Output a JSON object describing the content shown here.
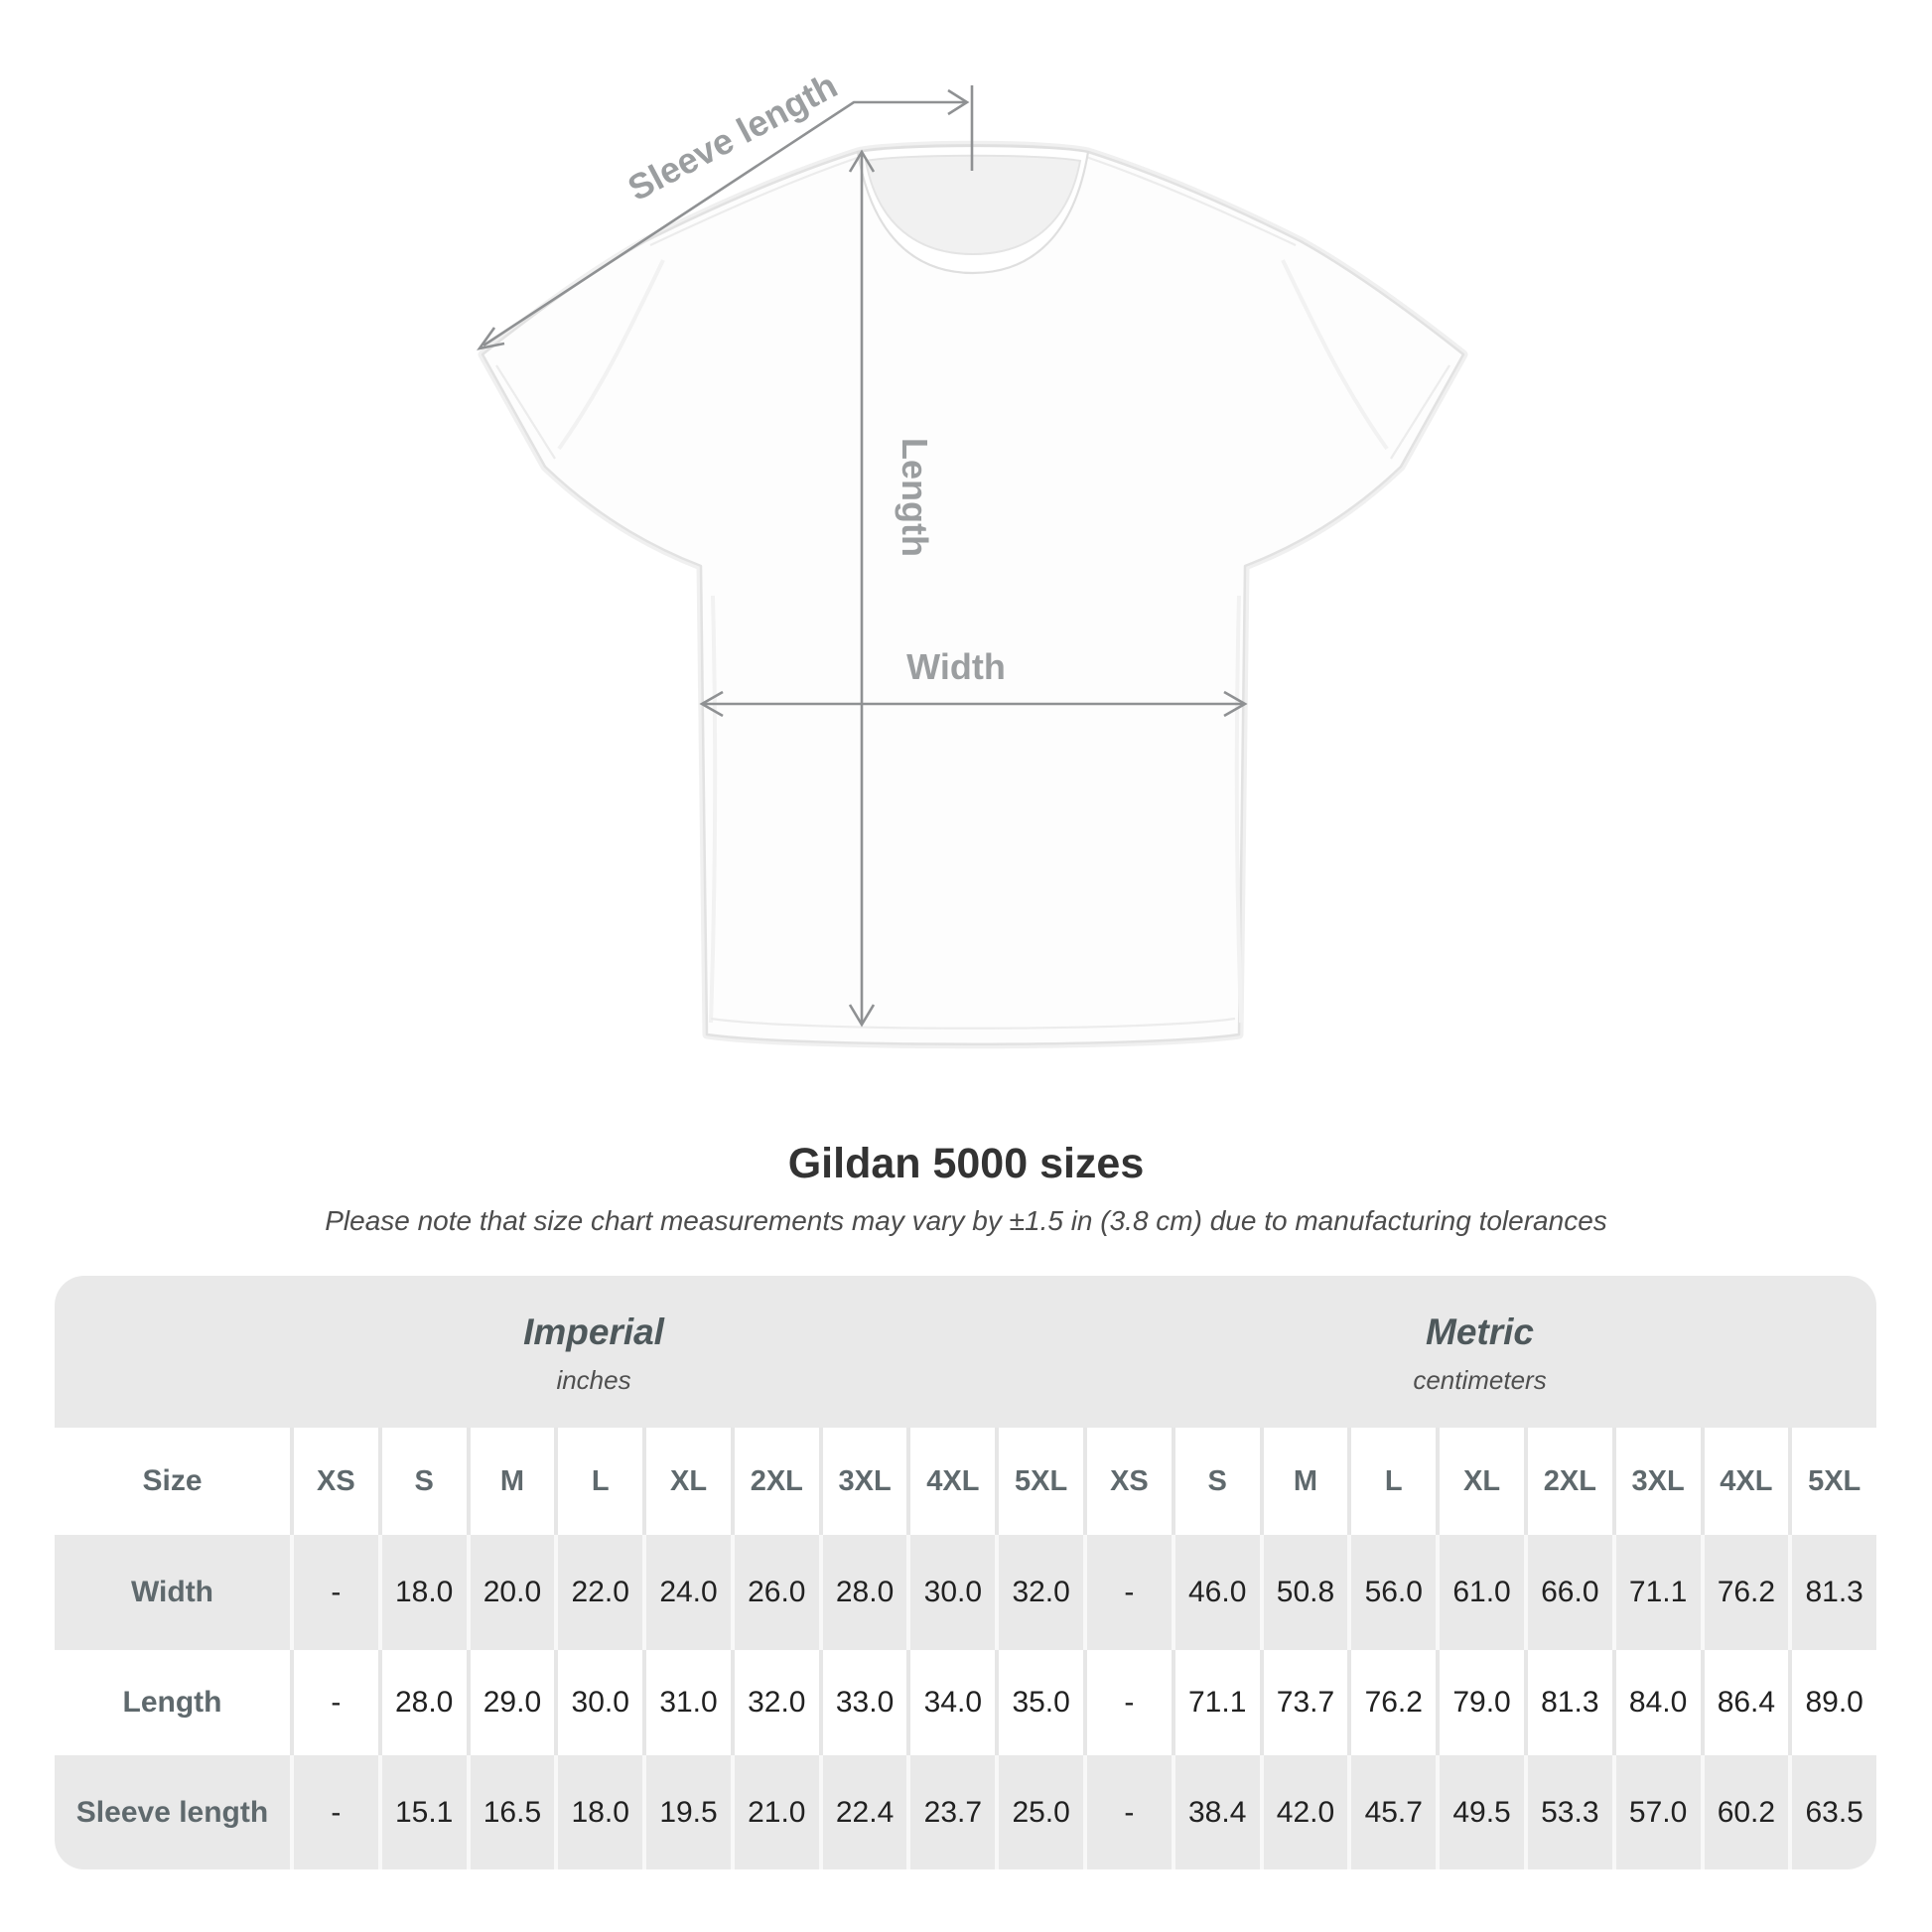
{
  "diagram": {
    "sleeve_length_label": "Sleeve length",
    "length_label": "Length",
    "width_label": "Width"
  },
  "chart_data": {
    "type": "table",
    "title": "Gildan 5000 sizes",
    "note": "Please note that size chart measurements may vary by ±1.5 in (3.8 cm) due to manufacturing tolerances",
    "corner_label": "Size",
    "section_headers": [
      {
        "title": "Imperial",
        "unit": "inches"
      },
      {
        "title": "Metric",
        "unit": "centimeters"
      }
    ],
    "size_columns": [
      "XS",
      "S",
      "M",
      "L",
      "XL",
      "2XL",
      "3XL",
      "4XL",
      "5XL",
      "XS",
      "S",
      "M",
      "L",
      "XL",
      "2XL",
      "3XL",
      "4XL",
      "5XL"
    ],
    "rows": [
      {
        "label": "Width",
        "values": [
          "-",
          "18.0",
          "20.0",
          "22.0",
          "24.0",
          "26.0",
          "28.0",
          "30.0",
          "32.0",
          "-",
          "46.0",
          "50.8",
          "56.0",
          "61.0",
          "66.0",
          "71.1",
          "76.2",
          "81.3"
        ]
      },
      {
        "label": "Length",
        "values": [
          "-",
          "28.0",
          "29.0",
          "30.0",
          "31.0",
          "32.0",
          "33.0",
          "34.0",
          "35.0",
          "-",
          "71.1",
          "73.7",
          "76.2",
          "79.0",
          "81.3",
          "84.0",
          "86.4",
          "89.0"
        ]
      },
      {
        "label": "Sleeve length",
        "values": [
          "-",
          "15.1",
          "16.5",
          "18.0",
          "19.5",
          "21.0",
          "22.4",
          "23.7",
          "25.0",
          "-",
          "38.4",
          "42.0",
          "45.7",
          "49.5",
          "53.3",
          "57.0",
          "60.2",
          "63.5"
        ]
      }
    ]
  },
  "colors": {
    "table_shade": "#e9e9e9",
    "header_text": "#5f696d",
    "value_text": "#212121",
    "measure_line": "#8f9193",
    "measure_label": "#9b9ea0",
    "title_text": "#333333"
  }
}
